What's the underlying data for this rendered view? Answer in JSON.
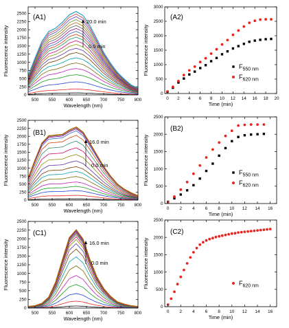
{
  "panels": [
    {
      "id": "A1",
      "label": "(A1)",
      "ylabel": "Fluorescence intensity",
      "xlabel": "Wavelength (nm)",
      "arrow_top": "20.0 min",
      "arrow_bottom": "0.0 min",
      "xticks": [
        "500",
        "550",
        "600",
        "650",
        "700",
        "750",
        "800"
      ],
      "yticks": [
        "0",
        "250",
        "500",
        "750",
        "1000",
        "1250",
        "1500",
        "1750",
        "2000",
        "2250",
        "2500"
      ]
    },
    {
      "id": "A2",
      "label": "(A2)",
      "ylabel": "Fluorescence intensity",
      "xlabel": "Time (min)",
      "xticks": [
        "0",
        "2",
        "4",
        "6",
        "8",
        "10",
        "12",
        "14",
        "16",
        "18",
        "20"
      ],
      "yticks": [
        "0",
        "500",
        "1000",
        "1500",
        "2000",
        "2500",
        "3000"
      ],
      "legend": [
        {
          "main": "F",
          "sub": "550 nm"
        },
        {
          "main": "F",
          "sub": "620 nm"
        }
      ]
    },
    {
      "id": "B1",
      "label": "(B1)",
      "ylabel": "Fluorescence intensity",
      "xlabel": "Wavelength (nm)",
      "arrow_top": "16.0 min",
      "arrow_bottom": "0.0 min",
      "xticks": [
        "500",
        "550",
        "600",
        "650",
        "700",
        "750",
        "800"
      ],
      "yticks": [
        "0",
        "250",
        "500",
        "750",
        "1000",
        "1250",
        "1500",
        "1750",
        "2000",
        "2250",
        "2500"
      ]
    },
    {
      "id": "B2",
      "label": "(B2)",
      "ylabel": "Fluorescence intensity",
      "xlabel": "Time (min)",
      "xticks": [
        "0",
        "2",
        "4",
        "6",
        "8",
        "10",
        "12",
        "14",
        "16"
      ],
      "yticks": [
        "0",
        "500",
        "1000",
        "1500",
        "2000",
        "2500"
      ],
      "legend": [
        {
          "main": "F",
          "sub": "550 nm"
        },
        {
          "main": "F",
          "sub": "620 nm"
        }
      ]
    },
    {
      "id": "C1",
      "label": "(C1)",
      "ylabel": "Fluorescence intensity",
      "xlabel": "Wavelength (nm)",
      "arrow_top": "16.0 min",
      "arrow_bottom": "0.0 min",
      "xticks": [
        "500",
        "550",
        "600",
        "650",
        "700",
        "750",
        "800"
      ],
      "yticks": [
        "0",
        "250",
        "500",
        "750",
        "1000",
        "1250",
        "1500",
        "1750",
        "2000",
        "2250",
        "2500"
      ]
    },
    {
      "id": "C2",
      "label": "(C2)",
      "ylabel": "Fluorescence intensity",
      "xlabel": "Time (min)",
      "xticks": [
        "0",
        "2",
        "4",
        "6",
        "8",
        "10",
        "12",
        "14",
        "16"
      ],
      "yticks": [
        "0",
        "500",
        "1000",
        "1500",
        "2000",
        "2500"
      ],
      "legend": [
        {
          "main": "F",
          "sub": "620 nm"
        }
      ]
    }
  ],
  "colors": {
    "black_series": "#000000",
    "red_series": "#e8251f",
    "spectra": [
      "#000000",
      "#e8251f",
      "#1f3fd6",
      "#1a9e1a",
      "#c01ec0",
      "#7d6a00",
      "#00a0b0",
      "#7a3a00",
      "#5d2fa6",
      "#8f8f00",
      "#d4006a",
      "#2d8a6a",
      "#d63a00",
      "#3060c0",
      "#9a00a0",
      "#606060",
      "#b06000",
      "#6d8a2a",
      "#5a3ec8",
      "#c23030",
      "#31a7c7"
    ]
  },
  "chart_data": [
    {
      "type": "line",
      "panel": "A1",
      "title": "",
      "xlabel": "Wavelength (nm)",
      "ylabel": "Fluorescence intensity",
      "xlim": [
        480,
        800
      ],
      "ylim": [
        0,
        2700
      ],
      "time_range_min": [
        0.0,
        20.0
      ],
      "spectrum_count": 21,
      "series_peak_values_at_620nm": [
        60,
        180,
        400,
        620,
        810,
        980,
        1140,
        1300,
        1430,
        1550,
        1660,
        1770,
        1860,
        1950,
        2040,
        2130,
        2220,
        2310,
        2400,
        2480,
        2560
      ],
      "spectral_shape": {
        "wavelength_nm": [
          480,
          500,
          520,
          540,
          560,
          580,
          600,
          620,
          640,
          660,
          680,
          700,
          720,
          740,
          760,
          780,
          800
        ],
        "relative_intensity": [
          0.23,
          0.44,
          0.64,
          0.76,
          0.8,
          0.87,
          0.96,
          1.0,
          0.95,
          0.83,
          0.67,
          0.51,
          0.38,
          0.27,
          0.19,
          0.12,
          0.08
        ]
      }
    },
    {
      "type": "scatter",
      "panel": "A2",
      "title": "",
      "xlabel": "Time (min)",
      "ylabel": "Fluorescence intensity",
      "xlim": [
        -0.5,
        20
      ],
      "ylim": [
        0,
        3000
      ],
      "legend_position": "right",
      "series": [
        {
          "name": "F550 nm",
          "x": [
            0,
            1,
            2,
            3,
            4,
            5,
            6,
            7,
            8,
            9,
            10,
            11,
            12,
            13,
            14,
            15,
            16,
            17,
            18,
            19
          ],
          "y": [
            60,
            200,
            380,
            520,
            660,
            760,
            880,
            980,
            1120,
            1230,
            1360,
            1460,
            1560,
            1640,
            1720,
            1790,
            1830,
            1860,
            1880,
            1890
          ]
        },
        {
          "name": "F620 nm",
          "x": [
            0,
            1,
            2,
            3,
            4,
            5,
            6,
            7,
            8,
            9,
            10,
            11,
            12,
            13,
            14,
            15,
            16,
            17,
            18,
            19
          ],
          "y": [
            70,
            230,
            430,
            640,
            800,
            930,
            1090,
            1220,
            1380,
            1530,
            1700,
            1850,
            2030,
            2180,
            2320,
            2450,
            2520,
            2560,
            2570,
            2570
          ]
        }
      ]
    },
    {
      "type": "line",
      "panel": "B1",
      "title": "",
      "xlabel": "Wavelength (nm)",
      "ylabel": "Fluorescence intensity",
      "xlim": [
        480,
        800
      ],
      "ylim": [
        0,
        2500
      ],
      "time_range_min": [
        0.0,
        16.0
      ],
      "spectrum_count": 17,
      "series_peak_values_at_620nm": [
        40,
        150,
        300,
        430,
        570,
        740,
        900,
        1050,
        1230,
        1430,
        1640,
        1850,
        2030,
        2170,
        2230,
        2260,
        2290
      ],
      "spectral_shape": {
        "wavelength_nm": [
          480,
          500,
          520,
          540,
          560,
          580,
          600,
          620,
          640,
          660,
          680,
          700,
          720,
          740,
          760,
          780,
          800
        ],
        "relative_intensity": [
          0.3,
          0.55,
          0.78,
          0.88,
          0.89,
          0.9,
          0.96,
          1.0,
          0.93,
          0.78,
          0.62,
          0.46,
          0.33,
          0.22,
          0.15,
          0.1,
          0.06
        ]
      }
    },
    {
      "type": "scatter",
      "panel": "B2",
      "title": "",
      "xlabel": "Time (min)",
      "ylabel": "Fluorescence intensity",
      "xlim": [
        -0.5,
        17
      ],
      "ylim": [
        0,
        2500
      ],
      "legend_position": "right",
      "series": [
        {
          "name": "F550 nm",
          "x": [
            0,
            1,
            2,
            3,
            4,
            5,
            6,
            7,
            8,
            9,
            10,
            11,
            12,
            13,
            14,
            15
          ],
          "y": [
            50,
            150,
            260,
            380,
            530,
            720,
            940,
            1150,
            1380,
            1600,
            1800,
            1920,
            1970,
            1990,
            2000,
            2010
          ]
        },
        {
          "name": "F620 nm",
          "x": [
            0,
            1,
            2,
            3,
            4,
            5,
            6,
            7,
            8,
            9,
            10,
            11,
            12,
            13,
            14,
            15
          ],
          "y": [
            40,
            200,
            400,
            620,
            860,
            1100,
            1330,
            1560,
            1760,
            1950,
            2100,
            2250,
            2270,
            2280,
            2280,
            2280
          ]
        }
      ]
    },
    {
      "type": "line",
      "panel": "C1",
      "title": "",
      "xlabel": "Wavelength (nm)",
      "ylabel": "Fluorescence intensity",
      "xlim": [
        480,
        800
      ],
      "ylim": [
        0,
        2500
      ],
      "time_range_min": [
        0.0,
        16.0
      ],
      "spectrum_count": 17,
      "series_peak_values_at_620nm": [
        60,
        200,
        420,
        680,
        940,
        1220,
        1480,
        1700,
        1860,
        1980,
        2060,
        2120,
        2160,
        2190,
        2220,
        2240,
        2260
      ],
      "spectral_shape": {
        "wavelength_nm": [
          480,
          500,
          520,
          540,
          560,
          580,
          600,
          620,
          640,
          660,
          680,
          700,
          720,
          740,
          760,
          780,
          800
        ],
        "relative_intensity": [
          0.02,
          0.03,
          0.06,
          0.14,
          0.33,
          0.62,
          0.9,
          1.0,
          0.88,
          0.62,
          0.4,
          0.25,
          0.15,
          0.08,
          0.05,
          0.03,
          0.02
        ]
      }
    },
    {
      "type": "scatter",
      "panel": "C2",
      "title": "",
      "xlabel": "Time (min)",
      "ylabel": "Fluorescence intensity",
      "xlim": [
        -0.5,
        17
      ],
      "ylim": [
        0,
        2500
      ],
      "legend_position": "right",
      "series": [
        {
          "name": "F620 nm",
          "x": [
            0,
            0.5,
            1,
            1.5,
            2,
            2.5,
            3,
            3.5,
            4,
            4.5,
            5,
            5.5,
            6,
            6.5,
            7,
            7.5,
            8,
            8.5,
            9,
            9.5,
            10,
            10.5,
            11,
            11.5,
            12,
            12.5,
            13,
            13.5,
            14,
            14.5,
            15,
            15.5,
            16
          ],
          "y": [
            60,
            230,
            430,
            650,
            860,
            1060,
            1250,
            1420,
            1570,
            1690,
            1790,
            1860,
            1910,
            1950,
            1980,
            2010,
            2030,
            2050,
            2070,
            2090,
            2110,
            2120,
            2140,
            2150,
            2160,
            2170,
            2180,
            2190,
            2200,
            2210,
            2220,
            2230,
            2240
          ]
        }
      ]
    }
  ]
}
